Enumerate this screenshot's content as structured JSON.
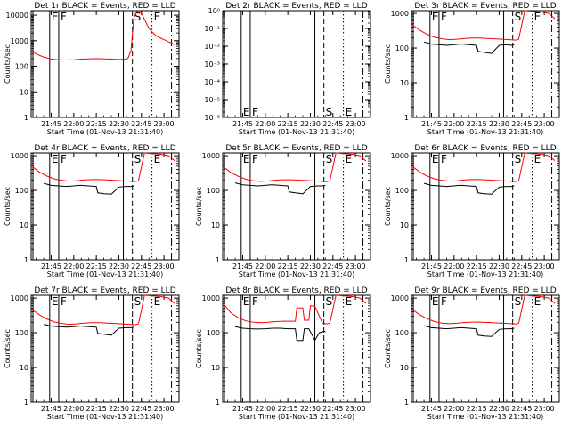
{
  "chart_data": [
    {
      "type": "line",
      "title": "Det 1r BLACK = Events, RED = LLD",
      "xlabel": "Start Time (01-Nov-13 21:31:40)",
      "ylabel": "Counts/sec",
      "yscale": "log",
      "ylim": [
        1,
        15000
      ],
      "yticks": [
        "1",
        "10",
        "100",
        "1000",
        "10000"
      ],
      "xticks": [
        "21:45",
        "22:00",
        "22:15",
        "22:30",
        "22:45",
        "23:00"
      ],
      "markers": [
        {
          "label": "E"
        },
        {
          "label": "F"
        },
        {
          "label": "S"
        },
        {
          "label": "E"
        }
      ],
      "series": [
        {
          "name": "BLACK = Events",
          "color": "#000000",
          "x": [],
          "y": []
        },
        {
          "name": "RED = LLD",
          "color": "#ff0000",
          "x": [
            "21:32",
            "21:35",
            "21:40",
            "21:45",
            "21:50",
            "21:55",
            "22:00",
            "22:05",
            "22:10",
            "22:15",
            "22:20",
            "22:25",
            "22:30",
            "22:34",
            "22:36",
            "22:38",
            "22:40",
            "22:42",
            "22:45",
            "22:50",
            "22:55",
            "23:00",
            "23:05",
            "23:07"
          ],
          "y": [
            420,
            300,
            230,
            190,
            180,
            175,
            180,
            190,
            195,
            200,
            195,
            190,
            185,
            190,
            200,
            400,
            8000,
            14000,
            12000,
            3000,
            1500,
            1100,
            800,
            700
          ]
        }
      ]
    },
    {
      "type": "line",
      "title": "Det 2r BLACK = Events, RED = LLD",
      "xlabel": "Start Time (01-Nov-13 21:31:40)",
      "ylabel": "",
      "yscale": "log",
      "ylim": [
        1e-06,
        1
      ],
      "yticks": [
        "10⁻⁶",
        "10⁻⁵",
        "10⁻⁴",
        "10⁻³",
        "10⁻²",
        "10⁻¹",
        "10⁰"
      ],
      "xticks": [
        "21:45",
        "22:00",
        "22:15",
        "22:30",
        "22:45",
        "23:00"
      ],
      "markers": [
        {
          "label": "E"
        },
        {
          "label": "F"
        },
        {
          "label": "S"
        },
        {
          "label": "E"
        }
      ],
      "series": []
    },
    {
      "type": "line",
      "title": "Det 3r BLACK = Events, RED = LLD",
      "xlabel": "Start Time (01-Nov-13 21:31:40)",
      "ylabel": "Counts/sec",
      "yscale": "log",
      "ylim": [
        1,
        1200
      ],
      "yticks": [
        "1",
        "10",
        "100",
        "1000"
      ],
      "xticks": [
        "21:45",
        "22:00",
        "22:15",
        "22:30",
        "22:45",
        "23:00"
      ],
      "markers": [
        {
          "label": "E"
        },
        {
          "label": "F"
        },
        {
          "label": "S"
        },
        {
          "label": "E"
        }
      ],
      "series": [
        {
          "name": "BLACK = Events",
          "color": "#000000",
          "x": [
            "21:40",
            "21:45",
            "21:50",
            "21:55",
            "22:00",
            "22:04",
            "22:05",
            "22:10",
            "22:15",
            "22:16",
            "22:20",
            "22:25",
            "22:30",
            "22:35",
            "22:38",
            "22:40"
          ],
          "y": [
            150,
            130,
            125,
            120,
            125,
            130,
            130,
            125,
            120,
            80,
            75,
            70,
            120,
            125,
            120,
            125
          ]
        },
        {
          "name": "RED = LLD",
          "color": "#ff0000",
          "x": [
            "21:32",
            "21:37",
            "21:42",
            "21:47",
            "21:52",
            "21:57",
            "22:02",
            "22:07",
            "22:12",
            "22:17",
            "22:22",
            "22:27",
            "22:32",
            "22:37",
            "22:41",
            "22:43",
            "22:47",
            "22:52",
            "22:58",
            "23:03",
            "23:07"
          ],
          "y": [
            480,
            330,
            250,
            205,
            185,
            175,
            180,
            190,
            195,
            195,
            190,
            185,
            180,
            175,
            170,
            180,
            1200,
            1150,
            1100,
            1000,
            700
          ]
        }
      ]
    },
    {
      "type": "line",
      "title": "Det 4r BLACK = Events, RED = LLD",
      "xlabel": "Start Time (01-Nov-13 21:31:40)",
      "ylabel": "Counts/sec",
      "yscale": "log",
      "ylim": [
        1,
        1200
      ],
      "yticks": [
        "1",
        "10",
        "100",
        "1000"
      ],
      "xticks": [
        "21:45",
        "22:00",
        "22:15",
        "22:30",
        "22:45",
        "23:00"
      ],
      "markers": [
        {
          "label": "E"
        },
        {
          "label": "F"
        },
        {
          "label": "S"
        },
        {
          "label": "E"
        }
      ],
      "series": [
        {
          "name": "BLACK = Events",
          "color": "#000000",
          "x": [
            "21:40",
            "21:45",
            "21:50",
            "21:55",
            "22:00",
            "22:04",
            "22:05",
            "22:10",
            "22:15",
            "22:16",
            "22:20",
            "22:25",
            "22:30",
            "22:35",
            "22:38",
            "22:40"
          ],
          "y": [
            160,
            140,
            135,
            130,
            135,
            140,
            140,
            135,
            130,
            85,
            80,
            78,
            125,
            130,
            130,
            135
          ]
        },
        {
          "name": "RED = LLD",
          "color": "#ff0000",
          "x": [
            "21:32",
            "21:37",
            "21:42",
            "21:47",
            "21:52",
            "21:57",
            "22:02",
            "22:07",
            "22:12",
            "22:17",
            "22:22",
            "22:27",
            "22:32",
            "22:37",
            "22:41",
            "22:43",
            "22:47",
            "22:52",
            "22:58",
            "23:03",
            "23:07"
          ],
          "y": [
            500,
            340,
            260,
            215,
            195,
            185,
            190,
            200,
            205,
            205,
            200,
            195,
            190,
            185,
            180,
            190,
            1200,
            1150,
            1100,
            1000,
            720
          ]
        }
      ]
    },
    {
      "type": "line",
      "title": "Det 5r BLACK = Events, RED = LLD",
      "xlabel": "Start Time (01-Nov-13 21:31:40)",
      "ylabel": "Counts/sec",
      "yscale": "log",
      "ylim": [
        1,
        1200
      ],
      "yticks": [
        "1",
        "10",
        "100",
        "1000"
      ],
      "xticks": [
        "21:45",
        "22:00",
        "22:15",
        "22:30",
        "22:45",
        "23:00"
      ],
      "markers": [
        {
          "label": "E"
        },
        {
          "label": "F"
        },
        {
          "label": "S"
        },
        {
          "label": "E"
        }
      ],
      "series": [
        {
          "name": "BLACK = Events",
          "color": "#000000",
          "x": [
            "21:40",
            "21:45",
            "21:50",
            "21:55",
            "22:00",
            "22:04",
            "22:05",
            "22:10",
            "22:15",
            "22:16",
            "22:20",
            "22:25",
            "22:30",
            "22:35",
            "22:38",
            "22:40"
          ],
          "y": [
            165,
            145,
            140,
            135,
            140,
            145,
            145,
            140,
            135,
            90,
            85,
            80,
            130,
            135,
            135,
            140
          ]
        },
        {
          "name": "RED = LLD",
          "color": "#ff0000",
          "x": [
            "21:32",
            "21:37",
            "21:42",
            "21:47",
            "21:52",
            "21:57",
            "22:02",
            "22:07",
            "22:12",
            "22:17",
            "22:22",
            "22:27",
            "22:32",
            "22:37",
            "22:41",
            "22:43",
            "22:47",
            "22:52",
            "22:58",
            "23:03",
            "23:07"
          ],
          "y": [
            480,
            330,
            255,
            210,
            190,
            182,
            188,
            198,
            203,
            203,
            198,
            193,
            188,
            183,
            178,
            188,
            1200,
            1150,
            1100,
            1000,
            700
          ]
        }
      ]
    },
    {
      "type": "line",
      "title": "Det 6r BLACK = Events, RED = LLD",
      "xlabel": "Start Time (01-Nov-13 21:31:40)",
      "ylabel": "Counts/sec",
      "yscale": "log",
      "ylim": [
        1,
        1200
      ],
      "yticks": [
        "1",
        "10",
        "100",
        "1000"
      ],
      "xticks": [
        "21:45",
        "22:00",
        "22:15",
        "22:30",
        "22:45",
        "23:00"
      ],
      "markers": [
        {
          "label": "E"
        },
        {
          "label": "F"
        },
        {
          "label": "S"
        },
        {
          "label": "E"
        }
      ],
      "series": [
        {
          "name": "BLACK = Events",
          "color": "#000000",
          "x": [
            "21:40",
            "21:45",
            "21:50",
            "21:55",
            "22:00",
            "22:04",
            "22:05",
            "22:10",
            "22:15",
            "22:16",
            "22:20",
            "22:25",
            "22:30",
            "22:35",
            "22:38",
            "22:40"
          ],
          "y": [
            160,
            140,
            135,
            130,
            135,
            140,
            140,
            135,
            130,
            85,
            80,
            78,
            125,
            130,
            130,
            135
          ]
        },
        {
          "name": "RED = LLD",
          "color": "#ff0000",
          "x": [
            "21:32",
            "21:37",
            "21:42",
            "21:47",
            "21:52",
            "21:57",
            "22:02",
            "22:07",
            "22:12",
            "22:17",
            "22:22",
            "22:27",
            "22:32",
            "22:37",
            "22:41",
            "22:43",
            "22:47",
            "22:52",
            "22:58",
            "23:03",
            "23:07"
          ],
          "y": [
            500,
            340,
            260,
            215,
            195,
            185,
            190,
            200,
            205,
            205,
            200,
            195,
            190,
            185,
            180,
            190,
            1200,
            1150,
            1100,
            1000,
            720
          ]
        }
      ]
    },
    {
      "type": "line",
      "title": "Det 7r BLACK = Events, RED = LLD",
      "xlabel": "Start Time (01-Nov-13 21:31:40)",
      "ylabel": "Counts/sec",
      "yscale": "log",
      "ylim": [
        1,
        1200
      ],
      "yticks": [
        "1",
        "10",
        "100",
        "1000"
      ],
      "xticks": [
        "21:45",
        "22:00",
        "22:15",
        "22:30",
        "22:45",
        "23:00"
      ],
      "markers": [
        {
          "label": "E"
        },
        {
          "label": "F"
        },
        {
          "label": "S"
        },
        {
          "label": "E"
        }
      ],
      "series": [
        {
          "name": "BLACK = Events",
          "color": "#000000",
          "x": [
            "21:40",
            "21:45",
            "21:50",
            "21:55",
            "22:00",
            "22:04",
            "22:05",
            "22:10",
            "22:15",
            "22:16",
            "22:20",
            "22:25",
            "22:30",
            "22:35",
            "22:38",
            "22:40"
          ],
          "y": [
            175,
            155,
            150,
            145,
            150,
            155,
            155,
            150,
            145,
            95,
            90,
            85,
            135,
            140,
            140,
            145
          ]
        },
        {
          "name": "RED = LLD",
          "color": "#ff0000",
          "x": [
            "21:32",
            "21:37",
            "21:42",
            "21:47",
            "21:52",
            "21:57",
            "22:02",
            "22:07",
            "22:12",
            "22:17",
            "22:22",
            "22:27",
            "22:32",
            "22:37",
            "22:41",
            "22:43",
            "22:47",
            "22:52",
            "22:58",
            "23:03",
            "23:07"
          ],
          "y": [
            480,
            330,
            250,
            205,
            185,
            175,
            180,
            190,
            195,
            195,
            190,
            185,
            180,
            175,
            170,
            180,
            1200,
            1150,
            1100,
            1000,
            700
          ]
        }
      ]
    },
    {
      "type": "line",
      "title": "Det 8r BLACK = Events, RED = LLD",
      "xlabel": "Start Time (01-Nov-13 21:31:40)",
      "ylabel": "Counts/sec",
      "yscale": "log",
      "ylim": [
        1,
        1200
      ],
      "yticks": [
        "1",
        "10",
        "100",
        "1000"
      ],
      "xticks": [
        "21:45",
        "22:00",
        "22:15",
        "22:30",
        "22:45",
        "23:00"
      ],
      "markers": [
        {
          "label": "E"
        },
        {
          "label": "F"
        },
        {
          "label": "S"
        },
        {
          "label": "E"
        }
      ],
      "series": [
        {
          "name": "BLACK = Events",
          "color": "#000000",
          "x": [
            "21:40",
            "21:45",
            "21:50",
            "21:55",
            "22:00",
            "22:05",
            "22:10",
            "22:15",
            "22:20",
            "22:21",
            "22:25",
            "22:26",
            "22:29",
            "22:33",
            "22:36",
            "22:39",
            "22:40"
          ],
          "y": [
            150,
            135,
            130,
            128,
            130,
            135,
            135,
            130,
            130,
            60,
            60,
            130,
            130,
            60,
            100,
            110,
            105
          ]
        },
        {
          "name": "RED = LLD",
          "color": "#ff0000",
          "x": [
            "21:32",
            "21:37",
            "21:42",
            "21:47",
            "21:52",
            "21:57",
            "22:02",
            "22:07",
            "22:12",
            "22:17",
            "22:20",
            "22:21",
            "22:25",
            "22:26",
            "22:29",
            "22:30",
            "22:33",
            "22:38",
            "22:41",
            "22:43",
            "22:47",
            "22:52",
            "22:58",
            "23:03",
            "23:07"
          ],
          "y": [
            700,
            380,
            270,
            220,
            200,
            195,
            200,
            210,
            215,
            215,
            215,
            520,
            520,
            230,
            230,
            600,
            580,
            190,
            180,
            190,
            1200,
            1150,
            1100,
            1000,
            700
          ]
        }
      ]
    },
    {
      "type": "line",
      "title": "Det 9r BLACK = Events, RED = LLD",
      "xlabel": "Start Time (01-Nov-13 21:31:40)",
      "ylabel": "Counts/sec",
      "yscale": "log",
      "ylim": [
        1,
        1200
      ],
      "yticks": [
        "1",
        "10",
        "100",
        "1000"
      ],
      "xticks": [
        "21:45",
        "22:00",
        "22:15",
        "22:30",
        "22:45",
        "23:00"
      ],
      "markers": [
        {
          "label": "E"
        },
        {
          "label": "F"
        },
        {
          "label": "S"
        },
        {
          "label": "E"
        }
      ],
      "series": [
        {
          "name": "BLACK = Events",
          "color": "#000000",
          "x": [
            "21:40",
            "21:45",
            "21:50",
            "21:55",
            "22:00",
            "22:04",
            "22:05",
            "22:10",
            "22:15",
            "22:16",
            "22:20",
            "22:25",
            "22:30",
            "22:35",
            "22:38",
            "22:40"
          ],
          "y": [
            160,
            140,
            135,
            130,
            135,
            140,
            140,
            135,
            130,
            85,
            80,
            78,
            125,
            130,
            130,
            135
          ]
        },
        {
          "name": "RED = LLD",
          "color": "#ff0000",
          "x": [
            "21:32",
            "21:37",
            "21:42",
            "21:47",
            "21:52",
            "21:57",
            "22:02",
            "22:07",
            "22:12",
            "22:17",
            "22:22",
            "22:27",
            "22:32",
            "22:37",
            "22:41",
            "22:43",
            "22:47",
            "22:52",
            "22:58",
            "23:03",
            "23:07"
          ],
          "y": [
            480,
            330,
            255,
            210,
            190,
            182,
            188,
            198,
            203,
            203,
            198,
            193,
            188,
            183,
            178,
            188,
            1200,
            1150,
            1100,
            1000,
            700
          ]
        }
      ]
    }
  ]
}
